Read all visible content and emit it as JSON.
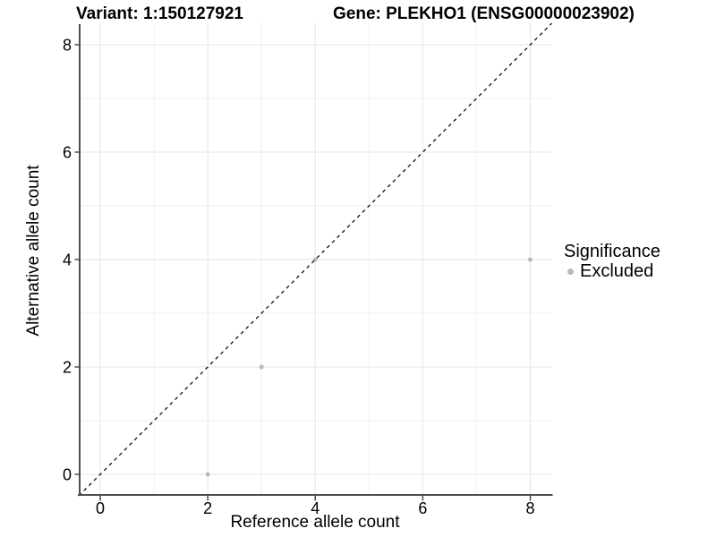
{
  "chart_data": {
    "type": "scatter",
    "title_left": "Variant: 1:150127921",
    "title_right": "Gene: PLEKHO1 (ENSG00000023902)",
    "xlabel": "Reference allele count",
    "ylabel": "Alternative allele count",
    "xlim": [
      -0.4,
      8.4
    ],
    "ylim": [
      -0.4,
      8.4
    ],
    "x_ticks": [
      0,
      2,
      4,
      6,
      8
    ],
    "y_ticks": [
      0,
      2,
      4,
      6,
      8
    ],
    "x_minor_ticks": [
      1,
      3,
      5,
      7
    ],
    "y_minor_ticks": [
      1,
      3,
      5,
      7
    ],
    "grid": "major and minor gridlines, white background",
    "identity_line": {
      "slope": 1,
      "intercept": 0,
      "style": "dashed",
      "color": "#111111"
    },
    "series": [
      {
        "name": "Excluded",
        "color": "#bababa",
        "marker": "circle",
        "points": [
          [
            2,
            0
          ],
          [
            3,
            2
          ],
          [
            4,
            4
          ],
          [
            8,
            4
          ]
        ]
      }
    ],
    "legend": {
      "title": "Significance",
      "position": "right",
      "items": [
        {
          "label": "Excluded",
          "color": "#bababa"
        }
      ]
    },
    "colors": {
      "axis": "#4d4d4d",
      "grid_major": "#e5e5e5",
      "grid_minor": "#f1f1f1",
      "text": "#000000",
      "background": "#ffffff"
    }
  }
}
